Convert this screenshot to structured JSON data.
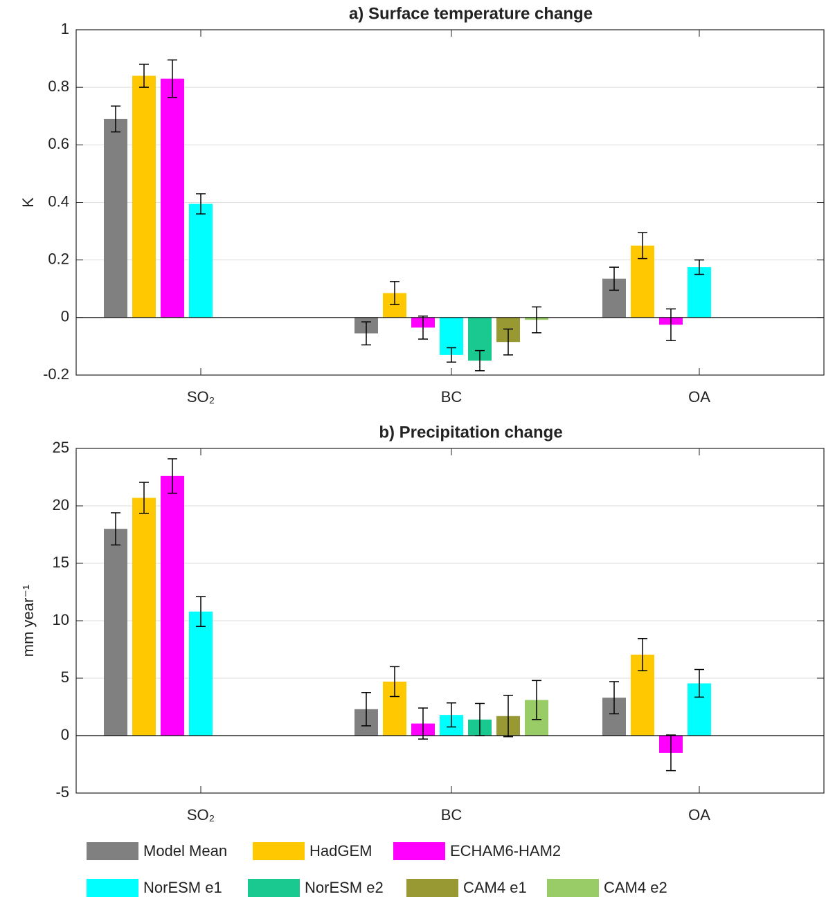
{
  "chart_data": [
    {
      "type": "bar",
      "title": "a) Surface temperature change",
      "y_label": "K",
      "categories": [
        "SO₂",
        "BC",
        "OA"
      ],
      "ylim": [
        -0.2,
        1
      ],
      "yticks": [
        -0.2,
        0,
        0.2,
        0.4,
        0.6,
        0.8,
        1
      ],
      "grid": true,
      "series": [
        {
          "name": "Model Mean",
          "color": "#808080",
          "values": [
            0.69,
            -0.055,
            0.135
          ],
          "errors": [
            0.045,
            0.04,
            0.04
          ]
        },
        {
          "name": "HadGEM",
          "color": "#ffc800",
          "values": [
            0.84,
            0.085,
            0.25
          ],
          "errors": [
            0.04,
            0.04,
            0.045
          ]
        },
        {
          "name": "ECHAM6-HAM2",
          "color": "#ff00ff",
          "values": [
            0.83,
            -0.035,
            -0.025
          ],
          "errors": [
            0.065,
            0.04,
            0.055
          ]
        },
        {
          "name": "NorESM e1",
          "color": "#00ffff",
          "values": [
            0.395,
            -0.13,
            0.175
          ],
          "errors": [
            0.035,
            0.025,
            0.025
          ]
        },
        {
          "name": "NorESM e2",
          "color": "#1ac98f",
          "values": [
            null,
            -0.15,
            null
          ],
          "errors": [
            null,
            0.035,
            null
          ]
        },
        {
          "name": "CAM4 e1",
          "color": "#999933",
          "values": [
            null,
            -0.085,
            null
          ],
          "errors": [
            null,
            0.045,
            null
          ]
        },
        {
          "name": "CAM4 e2",
          "color": "#99cc66",
          "values": [
            null,
            -0.008,
            null
          ],
          "errors": [
            null,
            0.045,
            null
          ]
        }
      ]
    },
    {
      "type": "bar",
      "title": "b) Precipitation change",
      "y_label": "mm year⁻¹",
      "categories": [
        "SO₂",
        "BC",
        "OA"
      ],
      "ylim": [
        -5,
        25
      ],
      "yticks": [
        -5,
        0,
        5,
        10,
        15,
        20,
        25
      ],
      "grid": true,
      "series": [
        {
          "name": "Model Mean",
          "color": "#808080",
          "values": [
            18,
            2.3,
            3.3
          ],
          "errors": [
            1.4,
            1.45,
            1.4
          ]
        },
        {
          "name": "HadGEM",
          "color": "#ffc800",
          "values": [
            20.7,
            4.7,
            7.05
          ],
          "errors": [
            1.35,
            1.3,
            1.4
          ]
        },
        {
          "name": "ECHAM6-HAM2",
          "color": "#ff00ff",
          "values": [
            22.6,
            1.05,
            -1.5
          ],
          "errors": [
            1.5,
            1.35,
            1.55
          ]
        },
        {
          "name": "NorESM e1",
          "color": "#00ffff",
          "values": [
            10.8,
            1.8,
            4.55
          ],
          "errors": [
            1.3,
            1.05,
            1.2
          ]
        },
        {
          "name": "NorESM e2",
          "color": "#1ac98f",
          "values": [
            null,
            1.4,
            null
          ],
          "errors": [
            null,
            1.4,
            null
          ]
        },
        {
          "name": "CAM4 e1",
          "color": "#999933",
          "values": [
            null,
            1.7,
            null
          ],
          "errors": [
            null,
            1.8,
            null
          ]
        },
        {
          "name": "CAM4 e2",
          "color": "#99cc66",
          "values": [
            null,
            3.1,
            null
          ],
          "errors": [
            null,
            1.7,
            null
          ]
        }
      ]
    }
  ]
}
